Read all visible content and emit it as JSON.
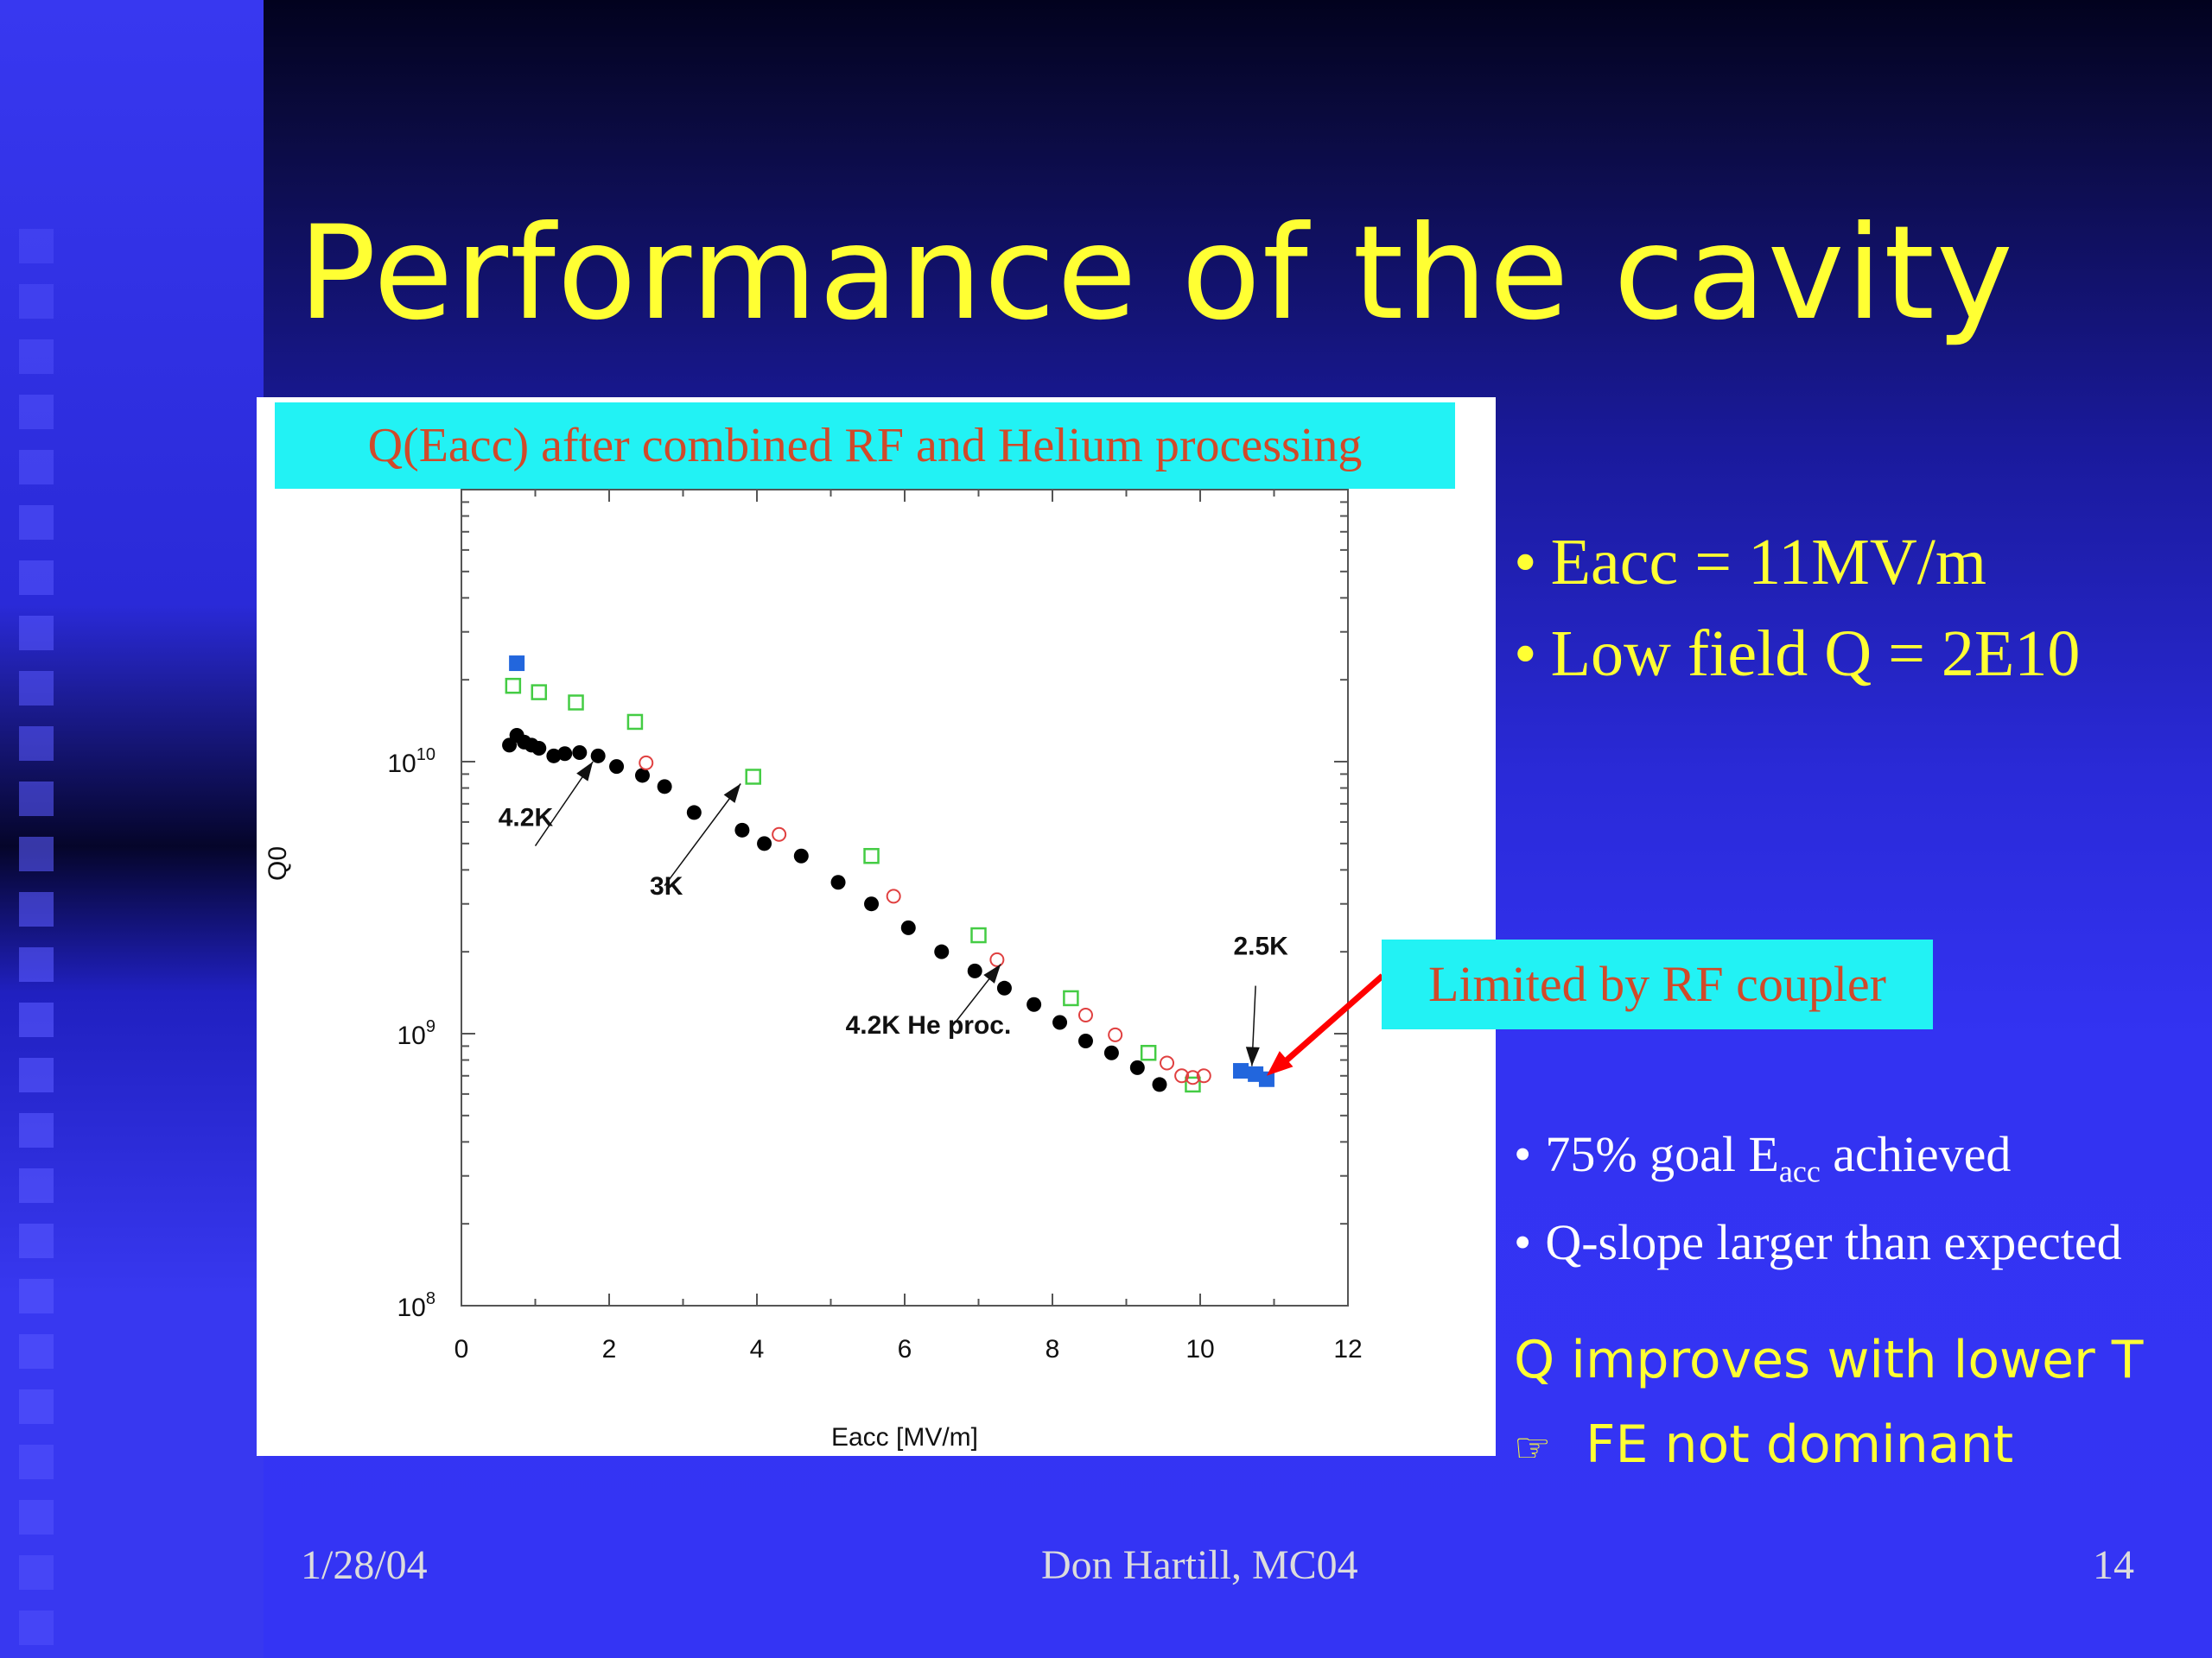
{
  "slide": {
    "title": "Performance of the cavity",
    "bullets_top": [
      "Eacc = 11MV/m",
      "Low field Q = 2E10"
    ],
    "bullets_mid": [
      {
        "pre": "75% goal E",
        "sub": "acc",
        "post": " achieved"
      },
      {
        "pre": "Q-slope larger than expected",
        "sub": "",
        "post": ""
      }
    ],
    "notes": [
      "Q improves with lower T",
      "FE not dominant"
    ],
    "note_icon": "hand-pointer-icon",
    "footer": {
      "date": "1/28/04",
      "center": "Don Hartill,   MC04",
      "page": "14"
    },
    "colors": {
      "title": "#ffff33",
      "label_box": "#22f2f4",
      "label_text": "#d04a2a",
      "arrow": "#ff0000"
    }
  },
  "chart_data": {
    "type": "scatter",
    "title": "Q(Eacc) after combined RF and Helium processing",
    "xlabel": "Eacc [MV/m]",
    "ylabel": "Q0",
    "xlim": [
      0,
      12
    ],
    "ylim": [
      100000000.0,
      100000000000.0
    ],
    "yscale": "log",
    "xticks": [
      "0",
      "2",
      "4",
      "6",
      "8",
      "10",
      "12"
    ],
    "yticks": [
      {
        "base": "10",
        "exp": "8",
        "value": 100000000.0
      },
      {
        "base": "10",
        "exp": "9",
        "value": 1000000000.0
      },
      {
        "base": "10",
        "exp": "10",
        "value": 10000000000.0
      }
    ],
    "series": [
      {
        "marker": "filled-circle",
        "color": "#000000",
        "points": [
          [
            0.65,
            11500000000.0
          ],
          [
            0.75,
            12500000000.0
          ],
          [
            0.85,
            11800000000.0
          ],
          [
            0.95,
            11500000000.0
          ],
          [
            1.05,
            11200000000.0
          ],
          [
            1.25,
            10500000000.0
          ],
          [
            1.4,
            10700000000.0
          ],
          [
            1.6,
            10800000000.0
          ],
          [
            1.85,
            10500000000.0
          ],
          [
            2.1,
            9600000000.0
          ],
          [
            2.45,
            8900000000.0
          ],
          [
            2.75,
            8100000000.0
          ],
          [
            3.15,
            6500000000.0
          ],
          [
            3.8,
            5600000000.0
          ],
          [
            4.1,
            5000000000.0
          ],
          [
            4.6,
            4500000000.0
          ],
          [
            5.1,
            3600000000.0
          ],
          [
            5.55,
            3000000000.0
          ],
          [
            6.05,
            2450000000.0
          ],
          [
            6.5,
            2000000000.0
          ],
          [
            6.95,
            1700000000.0
          ],
          [
            7.35,
            1470000000.0
          ],
          [
            7.75,
            1280000000.0
          ],
          [
            8.1,
            1100000000.0
          ],
          [
            8.45,
            940000000.0
          ],
          [
            8.8,
            850000000.0
          ],
          [
            9.15,
            750000000.0
          ],
          [
            9.45,
            650000000.0
          ]
        ]
      },
      {
        "marker": "open-square",
        "color": "#44cc44",
        "points": [
          [
            0.7,
            19000000000.0
          ],
          [
            1.05,
            18000000000.0
          ],
          [
            1.55,
            16500000000.0
          ],
          [
            2.35,
            14000000000.0
          ],
          [
            3.95,
            8800000000.0
          ],
          [
            5.55,
            4500000000.0
          ],
          [
            7.0,
            2300000000.0
          ],
          [
            8.25,
            1350000000.0
          ],
          [
            9.3,
            850000000.0
          ],
          [
            9.9,
            650000000.0
          ]
        ]
      },
      {
        "marker": "open-circle",
        "color": "#e04040",
        "points": [
          [
            2.5,
            9900000000.0
          ],
          [
            4.3,
            5400000000.0
          ],
          [
            5.85,
            3200000000.0
          ],
          [
            7.25,
            1870000000.0
          ],
          [
            8.45,
            1170000000.0
          ],
          [
            8.85,
            990000000.0
          ],
          [
            9.55,
            780000000.0
          ],
          [
            9.75,
            700000000.0
          ],
          [
            9.9,
            690000000.0
          ],
          [
            10.05,
            700000000.0
          ]
        ]
      },
      {
        "marker": "filled-square",
        "color": "#2266dd",
        "points": [
          [
            0.75,
            23000000000.0
          ],
          [
            10.55,
            730000000.0
          ],
          [
            10.75,
            710000000.0
          ],
          [
            10.9,
            680000000.0
          ]
        ]
      }
    ],
    "annotations": [
      "4.2K",
      "3K",
      "4.2K He proc.",
      "2.5K",
      "Limited by RF coupler"
    ]
  }
}
